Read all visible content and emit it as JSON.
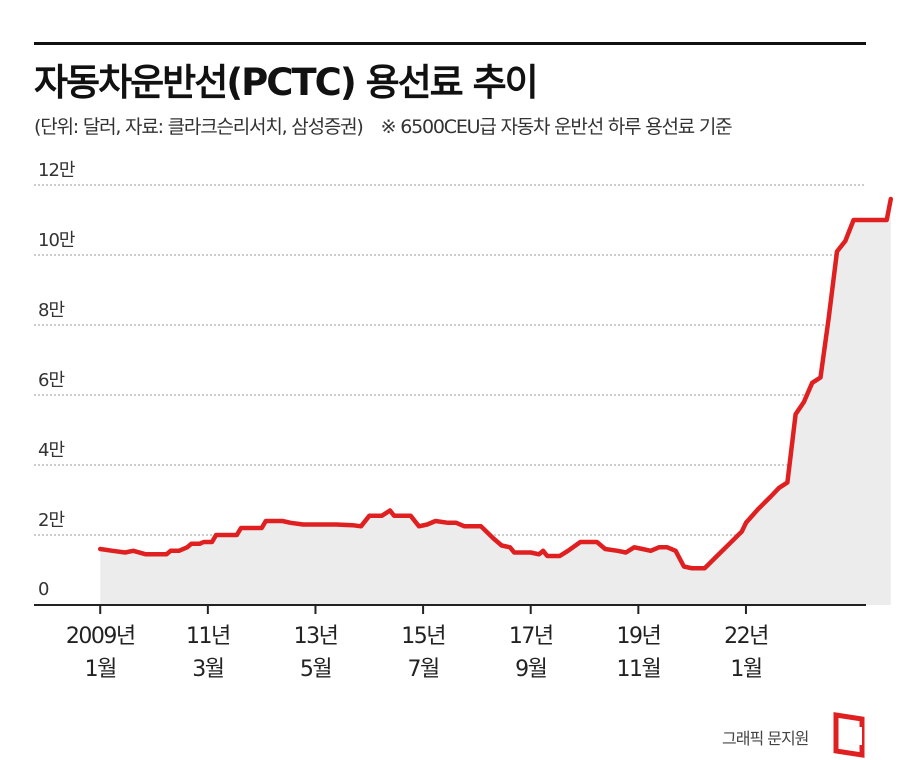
{
  "title": "자동차운반선(PCTC) 용선료 추이",
  "subtitle": "(단위: 달러, 자료: 클라크슨리서치, 삼성증권)",
  "note": "※ 6500CEU급 자동차 운반선 하루 용선료 기준",
  "credit": "그래픽 문지원",
  "colors": {
    "line": "#e02020",
    "fill": "#ececec",
    "grid": "#999999",
    "axis": "#222222"
  },
  "logo_icon": "red-document-bracket-icon",
  "chart_data": {
    "type": "area",
    "title": "자동차운반선(PCTC) 용선료 추이",
    "xlabel": "",
    "ylabel": "",
    "ylim": [
      0,
      120000
    ],
    "grid": true,
    "yticks": [
      {
        "value": 0,
        "label": "0"
      },
      {
        "value": 20000,
        "label": "2만"
      },
      {
        "value": 40000,
        "label": "4만"
      },
      {
        "value": 60000,
        "label": "6만"
      },
      {
        "value": 80000,
        "label": "8만"
      },
      {
        "value": 100000,
        "label": "10만"
      },
      {
        "value": 120000,
        "label": "12만"
      }
    ],
    "xlim": [
      "2007-09",
      "2024-06"
    ],
    "xticks": [
      {
        "date": "2009-01",
        "line1": "2009년",
        "line2": "1월"
      },
      {
        "date": "2011-03",
        "line1": "11년",
        "line2": "3월"
      },
      {
        "date": "2013-05",
        "line1": "13년",
        "line2": "5월"
      },
      {
        "date": "2015-07",
        "line1": "15년",
        "line2": "7월"
      },
      {
        "date": "2017-09",
        "line1": "17년",
        "line2": "9월"
      },
      {
        "date": "2019-11",
        "line1": "19년",
        "line2": "11월"
      },
      {
        "date": "2022-01",
        "line1": "22년",
        "line2": "1월"
      }
    ],
    "series": [
      {
        "points": [
          [
            "2009-01",
            16000
          ],
          [
            "2009-04",
            15500
          ],
          [
            "2009-07",
            15000
          ],
          [
            "2009-09",
            15500
          ],
          [
            "2009-12",
            14500
          ],
          [
            "2010-03",
            14500
          ],
          [
            "2010-05",
            14500
          ],
          [
            "2010-06",
            15500
          ],
          [
            "2010-08",
            15500
          ],
          [
            "2010-10",
            16500
          ],
          [
            "2010-11",
            17500
          ],
          [
            "2011-01",
            17500
          ],
          [
            "2011-02",
            18000
          ],
          [
            "2011-04",
            18000
          ],
          [
            "2011-05",
            20000
          ],
          [
            "2011-08",
            20000
          ],
          [
            "2011-10",
            20000
          ],
          [
            "2011-11",
            22000
          ],
          [
            "2012-02",
            22000
          ],
          [
            "2012-04",
            22000
          ],
          [
            "2012-05",
            24000
          ],
          [
            "2012-09",
            24000
          ],
          [
            "2012-11",
            23500
          ],
          [
            "2013-02",
            23000
          ],
          [
            "2013-04",
            23000
          ],
          [
            "2013-07",
            23000
          ],
          [
            "2013-10",
            23000
          ],
          [
            "2014-02",
            22800
          ],
          [
            "2014-04",
            22500
          ],
          [
            "2014-06",
            25500
          ],
          [
            "2014-09",
            25500
          ],
          [
            "2014-11",
            27000
          ],
          [
            "2014-12",
            25500
          ],
          [
            "2015-04",
            25500
          ],
          [
            "2015-05",
            24000
          ],
          [
            "2015-06",
            22500
          ],
          [
            "2015-08",
            23000
          ],
          [
            "2015-10",
            24000
          ],
          [
            "2016-01",
            23500
          ],
          [
            "2016-03",
            23500
          ],
          [
            "2016-05",
            22500
          ],
          [
            "2016-09",
            22500
          ],
          [
            "2016-12",
            19000
          ],
          [
            "2017-02",
            17000
          ],
          [
            "2017-04",
            16500
          ],
          [
            "2017-05",
            15000
          ],
          [
            "2017-09",
            15000
          ],
          [
            "2017-11",
            14500
          ],
          [
            "2017-12",
            15500
          ],
          [
            "2018-01",
            14000
          ],
          [
            "2018-04",
            14000
          ],
          [
            "2018-06",
            15500
          ],
          [
            "2018-09",
            18000
          ],
          [
            "2019-01",
            18000
          ],
          [
            "2019-03",
            16000
          ],
          [
            "2019-06",
            15500
          ],
          [
            "2019-08",
            15000
          ],
          [
            "2019-10",
            16500
          ],
          [
            "2019-12",
            16000
          ],
          [
            "2020-02",
            15500
          ],
          [
            "2020-04",
            16500
          ],
          [
            "2020-06",
            16500
          ],
          [
            "2020-08",
            15500
          ],
          [
            "2020-10",
            11000
          ],
          [
            "2020-12",
            10500
          ],
          [
            "2021-03",
            10500
          ],
          [
            "2021-06",
            14000
          ],
          [
            "2021-09",
            17500
          ],
          [
            "2021-12",
            21000
          ],
          [
            "2022-01",
            23500
          ],
          [
            "2022-04",
            27500
          ],
          [
            "2022-07",
            31000
          ],
          [
            "2022-09",
            33500
          ],
          [
            "2022-11",
            35000
          ],
          [
            "2023-01",
            54500
          ],
          [
            "2023-03",
            58000
          ],
          [
            "2023-05",
            63500
          ],
          [
            "2023-07",
            65000
          ],
          [
            "2023-09",
            82000
          ],
          [
            "2023-11",
            101000
          ],
          [
            "2024-01",
            104000
          ],
          [
            "2024-03",
            110000
          ],
          [
            "2024-06",
            110000
          ],
          [
            "2024-09",
            110000
          ],
          [
            "2024-11",
            110000
          ],
          [
            "2024-12",
            116000
          ]
        ]
      }
    ]
  }
}
